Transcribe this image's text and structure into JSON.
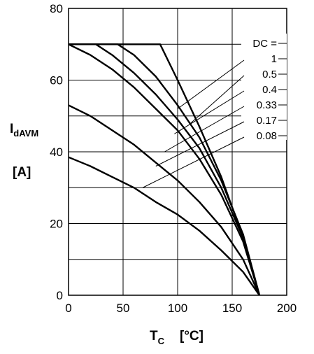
{
  "chart_data": {
    "type": "line",
    "xlabel": "T",
    "xlabel_sub": "C",
    "xlabel_unit": "[°C]",
    "ylabel": "I",
    "ylabel_sub": "dAVM",
    "ylabel_unit": "[A]",
    "xlim": [
      0,
      200
    ],
    "ylim": [
      0,
      80
    ],
    "x_ticks": [
      0,
      50,
      100,
      150,
      200
    ],
    "y_ticks": [
      0,
      20,
      40,
      60,
      80
    ],
    "x_tick_labels": [
      "0",
      "50",
      "100",
      "150",
      "200"
    ],
    "y_tick_labels": [
      "0",
      "20",
      "40",
      "60",
      "80"
    ],
    "grid": true,
    "legend_title": "DC =",
    "series": [
      {
        "name": "1",
        "points": [
          [
            0,
            70
          ],
          [
            84,
            70
          ],
          [
            100,
            60
          ],
          [
            120,
            47
          ],
          [
            140,
            33
          ],
          [
            160,
            16
          ],
          [
            175,
            0
          ]
        ]
      },
      {
        "name": "0.5",
        "points": [
          [
            0,
            70
          ],
          [
            45,
            70
          ],
          [
            60,
            67
          ],
          [
            80,
            61
          ],
          [
            100,
            53
          ],
          [
            120,
            44
          ],
          [
            140,
            32
          ],
          [
            160,
            17
          ],
          [
            175,
            0
          ]
        ]
      },
      {
        "name": "0.4",
        "points": [
          [
            0,
            70
          ],
          [
            25,
            70
          ],
          [
            40,
            67
          ],
          [
            60,
            62
          ],
          [
            80,
            56
          ],
          [
            100,
            49
          ],
          [
            120,
            41
          ],
          [
            140,
            30
          ],
          [
            160,
            16
          ],
          [
            175,
            0
          ]
        ]
      },
      {
        "name": "0.33",
        "points": [
          [
            0,
            70
          ],
          [
            20,
            67
          ],
          [
            40,
            63
          ],
          [
            60,
            58
          ],
          [
            80,
            52
          ],
          [
            100,
            46
          ],
          [
            120,
            38
          ],
          [
            140,
            28
          ],
          [
            160,
            15
          ],
          [
            175,
            0
          ]
        ]
      },
      {
        "name": "0.17",
        "points": [
          [
            0,
            53
          ],
          [
            20,
            50
          ],
          [
            40,
            46
          ],
          [
            60,
            42
          ],
          [
            80,
            37
          ],
          [
            100,
            32
          ],
          [
            120,
            26
          ],
          [
            140,
            19
          ],
          [
            160,
            10
          ],
          [
            175,
            0
          ]
        ]
      },
      {
        "name": "0.08",
        "points": [
          [
            0,
            38.5
          ],
          [
            20,
            36
          ],
          [
            40,
            33
          ],
          [
            60,
            30
          ],
          [
            80,
            26
          ],
          [
            100,
            22.5
          ],
          [
            120,
            18
          ],
          [
            140,
            12.5
          ],
          [
            160,
            6.5
          ],
          [
            175,
            0
          ]
        ]
      }
    ],
    "leaders": [
      {
        "series": "1",
        "curve_point": [
          100,
          52
        ]
      },
      {
        "series": "0.5",
        "curve_point": [
          112,
          48
        ]
      },
      {
        "series": "0.4",
        "curve_point": [
          97,
          45
        ]
      },
      {
        "series": "0.33",
        "curve_point": [
          88,
          40
        ]
      },
      {
        "series": "0.17",
        "curve_point": [
          80,
          36
        ]
      },
      {
        "series": "0.08",
        "curve_point": [
          68,
          30
        ]
      }
    ]
  }
}
